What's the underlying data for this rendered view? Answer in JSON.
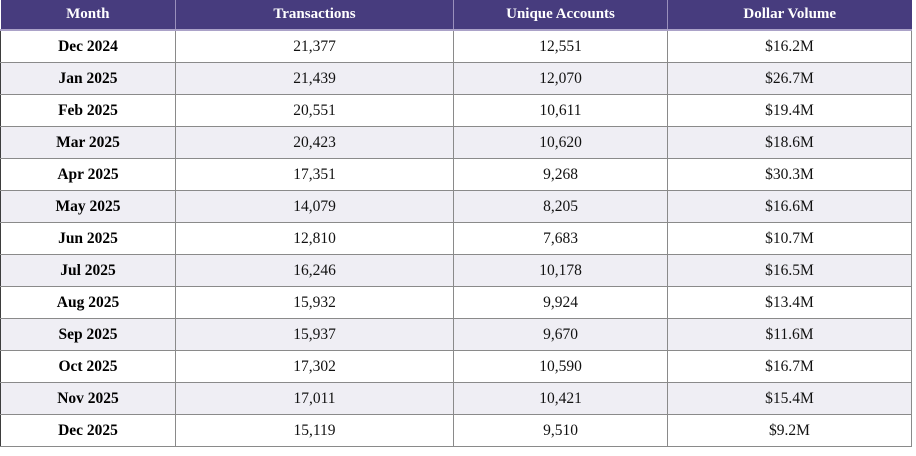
{
  "colors": {
    "header_bg": "#473C7E",
    "header_text": "#FFFFFF",
    "header_divider": "#9A90BC",
    "header_bottom_edge": "#ABA2C8",
    "row_bg": "#FFFFFF",
    "row_alt_bg": "#EFEEF4",
    "grid_line": "#8A8A8A",
    "left_border": "#3D3D3D",
    "body_text": "#111111"
  },
  "table": {
    "columns": [
      {
        "key": "month",
        "label": "Month"
      },
      {
        "key": "transactions",
        "label": "Transactions"
      },
      {
        "key": "unique_accounts",
        "label": "Unique Accounts"
      },
      {
        "key": "dollar_volume",
        "label": "Dollar Volume"
      }
    ],
    "rows": [
      {
        "month": "Dec 2024",
        "transactions": "21,377",
        "unique_accounts": "12,551",
        "dollar_volume": "$16.2M"
      },
      {
        "month": "Jan 2025",
        "transactions": "21,439",
        "unique_accounts": "12,070",
        "dollar_volume": "$26.7M"
      },
      {
        "month": "Feb 2025",
        "transactions": "20,551",
        "unique_accounts": "10,611",
        "dollar_volume": "$19.4M"
      },
      {
        "month": "Mar 2025",
        "transactions": "20,423",
        "unique_accounts": "10,620",
        "dollar_volume": "$18.6M"
      },
      {
        "month": "Apr 2025",
        "transactions": "17,351",
        "unique_accounts": "9,268",
        "dollar_volume": "$30.3M"
      },
      {
        "month": "May 2025",
        "transactions": "14,079",
        "unique_accounts": "8,205",
        "dollar_volume": "$16.6M"
      },
      {
        "month": "Jun 2025",
        "transactions": "12,810",
        "unique_accounts": "7,683",
        "dollar_volume": "$10.7M"
      },
      {
        "month": "Jul 2025",
        "transactions": "16,246",
        "unique_accounts": "10,178",
        "dollar_volume": "$16.5M"
      },
      {
        "month": "Aug 2025",
        "transactions": "15,932",
        "unique_accounts": "9,924",
        "dollar_volume": "$13.4M"
      },
      {
        "month": "Sep 2025",
        "transactions": "15,937",
        "unique_accounts": "9,670",
        "dollar_volume": "$11.6M"
      },
      {
        "month": "Oct 2025",
        "transactions": "17,302",
        "unique_accounts": "10,590",
        "dollar_volume": "$16.7M"
      },
      {
        "month": "Nov 2025",
        "transactions": "17,011",
        "unique_accounts": "10,421",
        "dollar_volume": "$15.4M"
      },
      {
        "month": "Dec 2025",
        "transactions": "15,119",
        "unique_accounts": "9,510",
        "dollar_volume": "$9.2M"
      }
    ]
  },
  "chart_data": {
    "type": "table",
    "title": "",
    "columns": [
      "Month",
      "Transactions",
      "Unique Accounts",
      "Dollar Volume"
    ],
    "rows": [
      [
        "Dec 2024",
        "21,377",
        "12,551",
        "$16.2M"
      ],
      [
        "Jan 2025",
        "21,439",
        "12,070",
        "$26.7M"
      ],
      [
        "Feb 2025",
        "20,551",
        "10,611",
        "$19.4M"
      ],
      [
        "Mar 2025",
        "20,423",
        "10,620",
        "$18.6M"
      ],
      [
        "Apr 2025",
        "17,351",
        "9,268",
        "$30.3M"
      ],
      [
        "May 2025",
        "14,079",
        "8,205",
        "$16.6M"
      ],
      [
        "Jun 2025",
        "12,810",
        "7,683",
        "$10.7M"
      ],
      [
        "Jul 2025",
        "16,246",
        "10,178",
        "$16.5M"
      ],
      [
        "Aug 2025",
        "15,932",
        "9,924",
        "$13.4M"
      ],
      [
        "Sep 2025",
        "15,937",
        "9,670",
        "$11.6M"
      ],
      [
        "Oct 2025",
        "17,302",
        "10,590",
        "$16.7M"
      ],
      [
        "Nov 2025",
        "17,011",
        "10,421",
        "$15.4M"
      ],
      [
        "Dec 2025",
        "15,119",
        "9,510",
        "$9.2M"
      ]
    ]
  }
}
